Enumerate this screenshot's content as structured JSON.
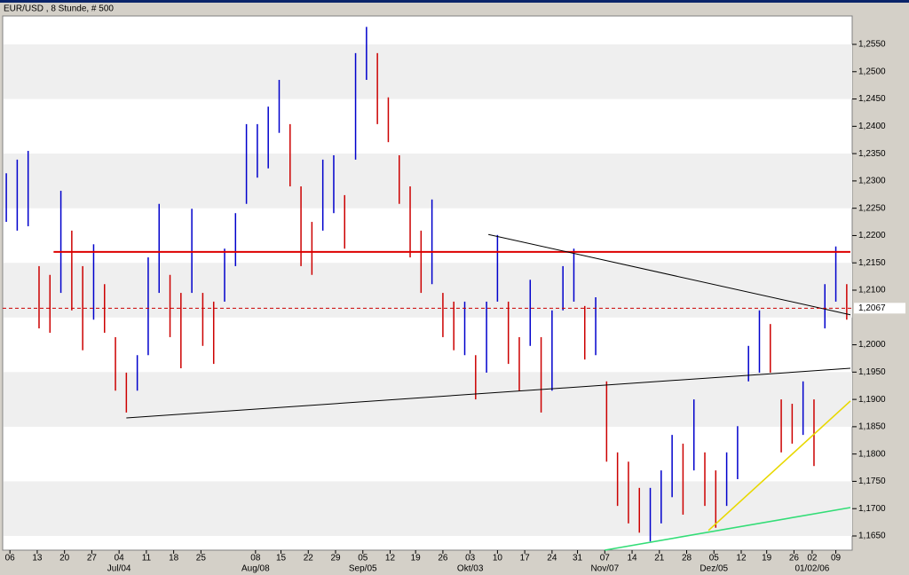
{
  "chart_data": {
    "type": "ohlc",
    "title": "EUR/USD , 8 Stunde, # 500",
    "up_color": "#0000cc",
    "down_color": "#cc0000",
    "xlim": [
      0,
      467
    ],
    "ylim": [
      1.1624,
      1.2602
    ],
    "x": [
      2,
      8,
      14,
      20,
      26,
      32,
      38,
      44,
      50,
      56,
      62,
      68,
      74,
      80,
      86,
      92,
      98,
      104,
      110,
      116,
      122,
      128,
      134,
      140,
      146,
      152,
      158,
      164,
      170,
      176,
      182,
      188,
      194,
      200,
      206,
      212,
      218,
      224,
      230,
      236,
      242,
      248,
      254,
      260,
      266,
      272,
      278,
      284,
      290,
      296,
      302,
      308,
      314,
      320,
      326,
      332,
      338,
      344,
      350,
      356,
      362,
      368,
      374,
      380,
      386,
      392,
      398,
      404,
      410,
      416,
      422,
      428,
      434,
      440,
      446,
      452,
      458,
      464
    ],
    "high": [
      1.2314,
      1.2339,
      1.2355,
      1.2144,
      1.2128,
      1.2282,
      1.2209,
      1.2144,
      1.2184,
      1.2111,
      1.2014,
      1.1949,
      1.1981,
      1.216,
      1.2258,
      1.2128,
      1.2095,
      1.2249,
      1.2095,
      1.2079,
      1.2176,
      1.2241,
      1.2404,
      1.2404,
      1.2436,
      1.2485,
      1.2404,
      1.229,
      1.2225,
      1.2339,
      1.2347,
      1.2274,
      1.2534,
      1.2582,
      1.2534,
      1.2453,
      1.2347,
      1.229,
      1.2209,
      1.2266,
      1.2095,
      1.2079,
      1.2079,
      1.1981,
      1.2079,
      1.2201,
      1.2079,
      1.2014,
      1.2119,
      1.2014,
      1.2063,
      1.2144,
      1.2176,
      1.2071,
      1.2087,
      1.1933,
      1.1803,
      1.1786,
      1.1738,
      1.1738,
      1.177,
      1.1835,
      1.1819,
      1.19,
      1.1803,
      1.177,
      1.1803,
      1.1851,
      1.1998,
      1.2063,
      1.2038,
      1.19,
      1.1892,
      1.1933,
      1.19,
      1.2111,
      1.218,
      1.2111
    ],
    "low": [
      1.2225,
      1.2209,
      1.2217,
      1.203,
      1.2022,
      1.2095,
      1.2063,
      1.199,
      1.2046,
      1.2022,
      1.1916,
      1.1876,
      1.1916,
      1.1981,
      1.2095,
      1.2014,
      1.1957,
      1.2095,
      1.1998,
      1.1965,
      1.2079,
      1.2144,
      1.2258,
      1.2306,
      1.2323,
      1.2388,
      1.229,
      1.2144,
      1.2128,
      1.2209,
      1.2241,
      1.2176,
      1.2339,
      1.2485,
      1.2404,
      1.2371,
      1.2258,
      1.216,
      1.2095,
      1.2111,
      1.2014,
      1.199,
      1.1981,
      1.19,
      1.1949,
      1.2079,
      1.1965,
      1.1916,
      1.1998,
      1.1876,
      1.1916,
      1.2063,
      1.2079,
      1.1973,
      1.1981,
      1.1786,
      1.1705,
      1.1673,
      1.1656,
      1.164,
      1.1673,
      1.1721,
      1.1689,
      1.177,
      1.1705,
      1.1665,
      1.1705,
      1.1754,
      1.1933,
      1.1949,
      1.1949,
      1.1803,
      1.1819,
      1.1835,
      1.1778,
      1.203,
      1.2079,
      1.2046
    ],
    "lines": [
      {
        "color": "#dd0000",
        "x": [
          28,
          466
        ],
        "y": [
          1.217,
          1.217
        ]
      },
      {
        "color": "#000000",
        "x": [
          68,
          466
        ],
        "y": [
          1.1866,
          1.1957
        ]
      },
      {
        "color": "#000000",
        "x": [
          267,
          466
        ],
        "y": [
          1.2202,
          1.2055
        ]
      },
      {
        "color": "#e8d800",
        "x": [
          388,
          466
        ],
        "y": [
          1.166,
          1.1897
        ]
      },
      {
        "color": "#33dd77",
        "x": [
          331,
          466
        ],
        "y": [
          1.1624,
          1.1702
        ]
      }
    ],
    "last_price": {
      "value": 1.2067,
      "label": "1,2067"
    },
    "yticks": [
      {
        "value": 1.165,
        "label": "1,1650"
      },
      {
        "value": 1.17,
        "label": "1,1700"
      },
      {
        "value": 1.175,
        "label": "1,1750"
      },
      {
        "value": 1.18,
        "label": "1,1800"
      },
      {
        "value": 1.185,
        "label": "1,1850"
      },
      {
        "value": 1.19,
        "label": "1,1900"
      },
      {
        "value": 1.195,
        "label": "1,1950"
      },
      {
        "value": 1.2,
        "label": "1,2000"
      },
      {
        "value": 1.21,
        "label": "1,2100"
      },
      {
        "value": 1.215,
        "label": "1,2150"
      },
      {
        "value": 1.22,
        "label": "1,2200"
      },
      {
        "value": 1.225,
        "label": "1,2250"
      },
      {
        "value": 1.23,
        "label": "1,2300"
      },
      {
        "value": 1.235,
        "label": "1,2350"
      },
      {
        "value": 1.24,
        "label": "1,2400"
      },
      {
        "value": 1.245,
        "label": "1,2450"
      },
      {
        "value": 1.25,
        "label": "1,2500"
      },
      {
        "value": 1.255,
        "label": "1,2550"
      }
    ],
    "xticks": [
      {
        "value": 4,
        "label": "06"
      },
      {
        "value": 19,
        "label": "13"
      },
      {
        "value": 34,
        "label": "20"
      },
      {
        "value": 49,
        "label": "27"
      },
      {
        "value": 64,
        "label": "04"
      },
      {
        "value": 79,
        "label": "11"
      },
      {
        "value": 94,
        "label": "18"
      },
      {
        "value": 109,
        "label": "25"
      },
      {
        "value": 139,
        "label": "08"
      },
      {
        "value": 153,
        "label": "15"
      },
      {
        "value": 168,
        "label": "22"
      },
      {
        "value": 183,
        "label": "29"
      },
      {
        "value": 198,
        "label": "05"
      },
      {
        "value": 213,
        "label": "12"
      },
      {
        "value": 227,
        "label": "19"
      },
      {
        "value": 242,
        "label": "26"
      },
      {
        "value": 257,
        "label": "03"
      },
      {
        "value": 272,
        "label": "10"
      },
      {
        "value": 287,
        "label": "17"
      },
      {
        "value": 302,
        "label": "24"
      },
      {
        "value": 316,
        "label": "31"
      },
      {
        "value": 331,
        "label": "07"
      },
      {
        "value": 346,
        "label": "14"
      },
      {
        "value": 361,
        "label": "21"
      },
      {
        "value": 376,
        "label": "28"
      },
      {
        "value": 391,
        "label": "05"
      },
      {
        "value": 406,
        "label": "12"
      },
      {
        "value": 420,
        "label": "19"
      },
      {
        "value": 435,
        "label": "26"
      },
      {
        "value": 445,
        "label": "02"
      },
      {
        "value": 458,
        "label": "09"
      }
    ],
    "month_ticks": [
      {
        "value": 64,
        "label": "Jul/04"
      },
      {
        "value": 139,
        "label": "Aug/08"
      },
      {
        "value": 198,
        "label": "Sep/05"
      },
      {
        "value": 257,
        "label": "Okt/03"
      },
      {
        "value": 331,
        "label": "Nov/07"
      },
      {
        "value": 391,
        "label": "Dez/05"
      },
      {
        "value": 445,
        "label": "01/02/06"
      }
    ]
  }
}
